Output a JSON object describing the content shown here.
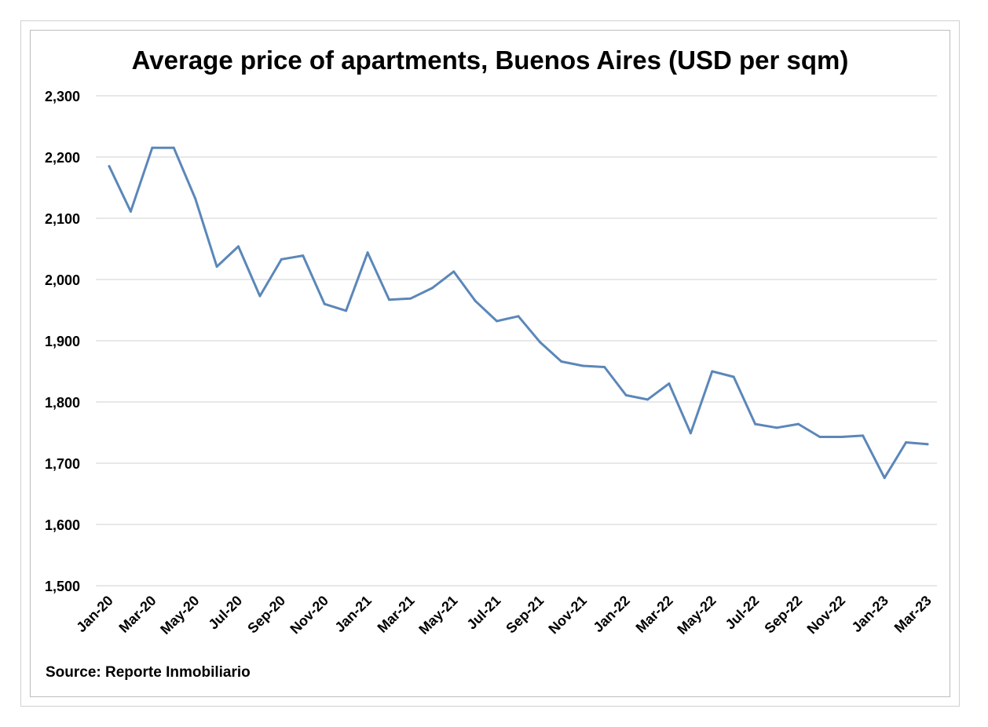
{
  "chart_data": {
    "type": "line",
    "title": "Average price of apartments, Buenos Aires (USD per sqm)",
    "source": "Source: Reporte Inmobiliario",
    "xlabel": "",
    "ylabel": "",
    "ylim": [
      1500,
      2300
    ],
    "y_ticks": [
      1500,
      1600,
      1700,
      1800,
      1900,
      2000,
      2100,
      2200,
      2300
    ],
    "y_tick_labels": [
      "1,500",
      "1,600",
      "1,700",
      "1,800",
      "1,900",
      "2,000",
      "2,100",
      "2,200",
      "2,300"
    ],
    "grid": true,
    "legend": "none",
    "line_color": "#5b87b9",
    "x": [
      "Jan-20",
      "Feb-20",
      "Mar-20",
      "Apr-20",
      "May-20",
      "Jun-20",
      "Jul-20",
      "Aug-20",
      "Sep-20",
      "Oct-20",
      "Nov-20",
      "Dec-20",
      "Jan-21",
      "Feb-21",
      "Mar-21",
      "Apr-21",
      "May-21",
      "Jun-21",
      "Jul-21",
      "Aug-21",
      "Sep-21",
      "Oct-21",
      "Nov-21",
      "Dec-21",
      "Jan-22",
      "Feb-22",
      "Mar-22",
      "Apr-22",
      "May-22",
      "Jun-22",
      "Jul-22",
      "Aug-22",
      "Sep-22",
      "Oct-22",
      "Nov-22",
      "Dec-22",
      "Jan-23",
      "Feb-23",
      "Mar-23"
    ],
    "x_tick_labels": [
      "Jan-20",
      "Mar-20",
      "May-20",
      "Jul-20",
      "Sep-20",
      "Nov-20",
      "Jan-21",
      "Mar-21",
      "May-21",
      "Jul-21",
      "Sep-21",
      "Nov-21",
      "Jan-22",
      "Mar-22",
      "May-22",
      "Jul-22",
      "Sep-22",
      "Nov-22",
      "Jan-23",
      "Mar-23"
    ],
    "series": [
      {
        "values": [
          2185,
          2111,
          2215,
          2215,
          2132,
          2021,
          2054,
          1973,
          2033,
          2039,
          1960,
          1949,
          2044,
          1967,
          1969,
          1986,
          2013,
          1965,
          1932,
          1940,
          1898,
          1866,
          1859,
          1857,
          1811,
          1804,
          1830,
          1749,
          1850,
          1841,
          1764,
          1758,
          1764,
          1743,
          1743,
          1745,
          1676,
          1734,
          1731
        ]
      }
    ]
  }
}
